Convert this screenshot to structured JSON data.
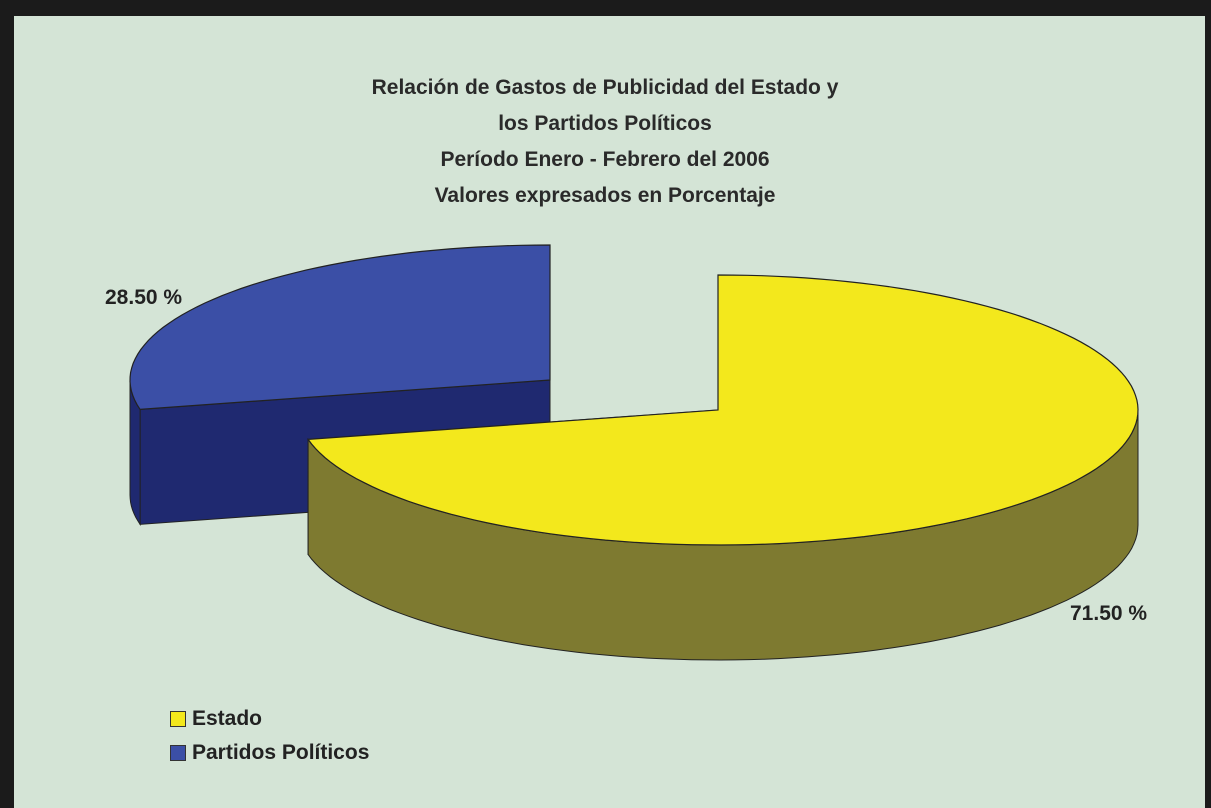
{
  "chart_data": {
    "type": "pie",
    "title_lines": [
      "Relación de Gastos de Publicidad  del Estado y",
      "los Partidos Políticos",
      "Período Enero - Febrero del 2006",
      "Valores expresados en Porcentaje"
    ],
    "slices": [
      {
        "name": "Estado",
        "value": 71.5,
        "label": "71.50 %",
        "color": "#f3e81c",
        "side_color": "#7e7a30"
      },
      {
        "name": "Partidos Políticos",
        "value": 28.5,
        "label": "28.50 %",
        "color": "#3b4fa6",
        "side_color": "#1f2970"
      }
    ],
    "legend_position": "bottom-left",
    "style": "3d-exploded"
  },
  "colors": {
    "background": "#d4e4d6",
    "frame": "#1b1b1b"
  }
}
